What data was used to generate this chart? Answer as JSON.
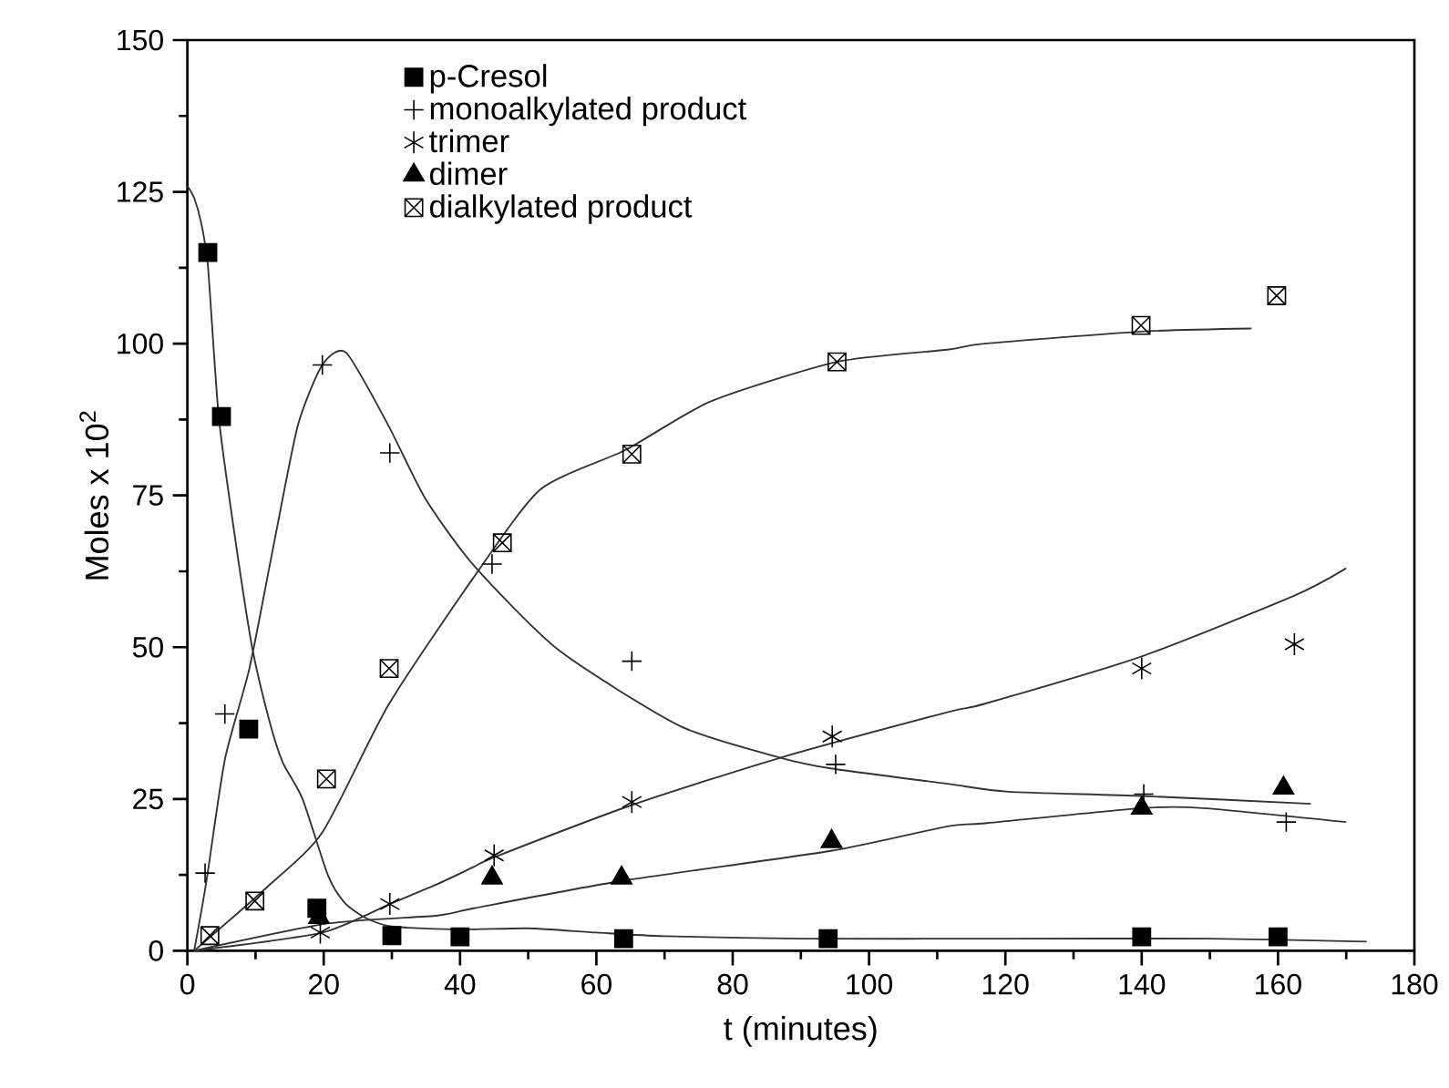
{
  "chart_data": {
    "type": "scatter",
    "xlabel": "t (minutes)",
    "ylabel": "Moles x 10$^{2}$",
    "xlim": [
      0,
      180
    ],
    "xticks": [
      0,
      20,
      40,
      60,
      80,
      100,
      120,
      140,
      160,
      180
    ],
    "ylim": [
      0,
      150
    ],
    "yticks": [
      0,
      25,
      50,
      75,
      100,
      125,
      150
    ],
    "grid": false,
    "legend": "top left",
    "series": [
      {
        "name": "p-Cresol",
        "marker": "square",
        "color": "#000000",
        "x": [
          3,
          5,
          9,
          19,
          30,
          40,
          64,
          94,
          140,
          160
        ],
        "values": [
          115,
          88,
          36.5,
          7,
          2.5,
          2.3,
          2,
          2,
          2.3,
          2.3
        ]
      },
      {
        "name": "monoalkylated product",
        "marker": "cross",
        "color": "#000000",
        "x": [
          2.6,
          5.5,
          19.8,
          29.7,
          44.7,
          65.2,
          95.1,
          140.3,
          161.2
        ],
        "values": [
          12.8,
          39,
          96.5,
          82,
          63.7,
          47.7,
          30.7,
          25.8,
          21.2
        ]
      },
      {
        "name": "trimer",
        "marker": "cross",
        "color": "#000000",
        "x": [
          19.5,
          29.7,
          45,
          65.2,
          94.6,
          140,
          162.4
        ],
        "values": [
          3,
          7.7,
          15.7,
          24.5,
          35.3,
          46.5,
          50.5
        ]
      },
      {
        "name": "dimer",
        "marker": "triangle",
        "color": "#000000",
        "x": [
          19.3,
          44.7,
          63.7,
          94.5,
          140,
          160.8
        ],
        "values": [
          5.5,
          12,
          12,
          18,
          23.5,
          26.8
        ]
      },
      {
        "name": "dialkylated product",
        "marker": "cross",
        "color": "#000000",
        "x": [
          3.3,
          9.9,
          20.4,
          29.6,
          46.2,
          65.2,
          95.3,
          139.9,
          159.8
        ],
        "values": [
          2.5,
          8.2,
          28.3,
          46.5,
          67.2,
          81.8,
          97,
          103,
          107.9
        ]
      },
      {
        "type": "line",
        "marker": "none",
        "line_style": "solid",
        "color": "#333333",
        "x": [
          0,
          1,
          2,
          3,
          4.6,
          7,
          9.5,
          12,
          14,
          16.9,
          20.6,
          23,
          26,
          30,
          40,
          50,
          60,
          70,
          90,
          120,
          150,
          173
        ],
        "values": [
          126,
          124,
          120,
          113,
          88,
          68,
          50,
          38,
          31,
          25,
          12.5,
          8,
          5.5,
          4,
          3.5,
          3.7,
          3,
          2.4,
          2,
          2,
          2,
          1.5
        ]
      },
      {
        "type": "line",
        "marker": "none",
        "line_style": "solid",
        "color": "#333333",
        "x": [
          1,
          2.8,
          5.5,
          9.1,
          12.6,
          16.2,
          19.8,
          23.3,
          29.5,
          34.9,
          42,
          54.5,
          72.3,
          87,
          94.6,
          111.5,
          120.4,
          140,
          164.8
        ],
        "values": [
          0,
          11.5,
          31.5,
          46.5,
          66.5,
          86.5,
          96.5,
          98.5,
          86.5,
          74.5,
          63.5,
          49.5,
          37,
          31.8,
          30,
          27.5,
          26.2,
          25.5,
          24.2
        ]
      },
      {
        "type": "line",
        "marker": "none",
        "line_style": "solid",
        "color": "#333333",
        "x": [
          1,
          19.8,
          29.7,
          36.7,
          42,
          45,
          65.2,
          87,
          111.5,
          117,
          140,
          162.4,
          170
        ],
        "values": [
          0,
          3,
          7.7,
          11,
          13.8,
          15.4,
          24,
          31.8,
          39.3,
          40.7,
          48.5,
          58.5,
          63
        ]
      },
      {
        "type": "line",
        "marker": "none",
        "line_style": "solid",
        "color": "#333333",
        "x": [
          1,
          20.6,
          36.7,
          42,
          63.7,
          94.6,
          111.5,
          117,
          140,
          149,
          170
        ],
        "values": [
          0,
          4.5,
          5.8,
          7,
          11.5,
          16.5,
          20.5,
          21,
          23.5,
          23.5,
          21.2
        ]
      },
      {
        "type": "line",
        "marker": "none",
        "line_style": "solid",
        "color": "#333333",
        "x": [
          1,
          11.7,
          19.8,
          29.5,
          42,
          51.8,
          64.3,
          76.8,
          95.3,
          111.5,
          116.9,
          139.9,
          156.1
        ],
        "values": [
          0,
          10.5,
          19.5,
          40.5,
          61.5,
          76,
          82.5,
          90.5,
          97,
          99,
          100,
          102,
          102.5
        ]
      }
    ]
  }
}
